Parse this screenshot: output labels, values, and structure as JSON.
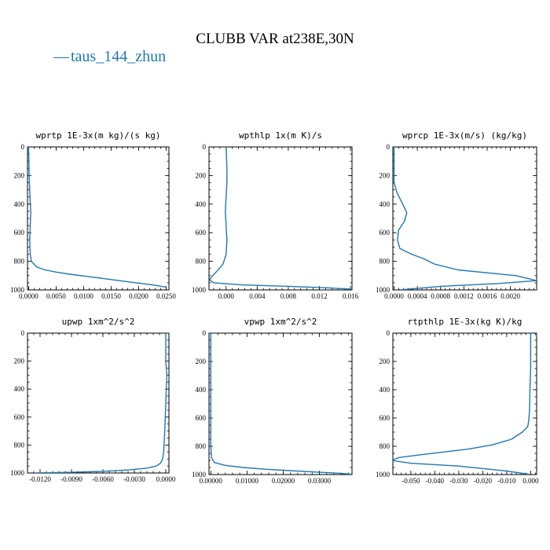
{
  "figure": {
    "title": "CLUBB VAR at238E,30N",
    "legend": {
      "line_glyph": "—",
      "label": "taus_144_zhun",
      "color": "#1f77b4"
    }
  },
  "chart_data": [
    {
      "type": "line",
      "title": "wprtp  1E-3x(m kg)/(s kg)",
      "xlim": [
        -0.0002,
        0.0255
      ],
      "ylim": [
        1000,
        0
      ],
      "xticks": [
        0.0,
        0.005,
        0.01,
        0.015,
        0.02,
        0.025
      ],
      "xtick_labels": [
        "0.0000",
        "0.0050",
        "0.0100",
        "0.0150",
        "0.0200",
        "0.0250"
      ],
      "yticks": [
        0,
        200,
        400,
        600,
        800,
        1000
      ],
      "ytick_labels": [
        "0",
        "200",
        "400",
        "600",
        "800",
        "1000"
      ],
      "series": [
        {
          "color": "#1f77b4",
          "x": [
            0.0,
            0.0001,
            0.0003,
            0.0004,
            0.0003,
            0.0002,
            0.0003,
            0.0005,
            0.0015,
            0.003,
            0.005,
            0.0075,
            0.0105,
            0.0135,
            0.0165,
            0.0195,
            0.0225,
            0.025
          ],
          "y": [
            0,
            200,
            400,
            450,
            550,
            650,
            750,
            800,
            840,
            860,
            875,
            890,
            905,
            920,
            935,
            950,
            965,
            980
          ]
        }
      ]
    },
    {
      "type": "line",
      "title": "wpthlp  1x(m K)/s",
      "xlim": [
        -0.0022,
        0.0162
      ],
      "ylim": [
        1000,
        0
      ],
      "xticks": [
        0.0,
        0.004,
        0.008,
        0.012,
        0.016
      ],
      "xtick_labels": [
        "0.000",
        "0.004",
        "0.008",
        "0.012",
        "0.016"
      ],
      "yticks": [
        0,
        200,
        400,
        600,
        800,
        1000
      ],
      "ytick_labels": [
        "0",
        "200",
        "400",
        "600",
        "800",
        "1000"
      ],
      "series": [
        {
          "color": "#1f77b4",
          "x": [
            0.0,
            0.0001,
            0.0001,
            0.0,
            -0.0001,
            0.0,
            0.0001,
            0.0,
            -0.0004,
            -0.0012,
            -0.0019,
            -0.0021,
            -0.0016,
            0.002,
            0.008,
            0.013,
            0.0162
          ],
          "y": [
            0,
            150,
            250,
            350,
            450,
            550,
            650,
            750,
            820,
            870,
            910,
            930,
            950,
            965,
            975,
            985,
            995
          ]
        }
      ]
    },
    {
      "type": "line",
      "title": "wprcp  1E-3x(m/s) (kg/kg)",
      "xlim": [
        -2e-05,
        0.00245
      ],
      "ylim": [
        1000,
        0
      ],
      "xticks": [
        0.0,
        0.0004,
        0.0008,
        0.0012,
        0.0016,
        0.002
      ],
      "xtick_labels": [
        "0.0000",
        "0.0004",
        "0.0008",
        "0.0012",
        "0.0016",
        "0.0020"
      ],
      "yticks": [
        0,
        200,
        400,
        600,
        800,
        1000
      ],
      "ytick_labels": [
        "0",
        "200",
        "400",
        "600",
        "800",
        "1000"
      ],
      "series": [
        {
          "color": "#1f77b4",
          "x": [
            0.0,
            0.0,
            5e-05,
            0.00015,
            0.00022,
            0.00018,
            8e-05,
            6e-05,
            0.0001,
            0.0003,
            0.0005,
            0.0007,
            0.0011,
            0.0016,
            0.0021,
            0.00245,
            0.0018,
            0.0008,
            0.0001
          ],
          "y": [
            0,
            250,
            320,
            400,
            460,
            520,
            580,
            650,
            710,
            750,
            780,
            820,
            860,
            880,
            900,
            935,
            955,
            975,
            1000
          ]
        }
      ]
    },
    {
      "type": "line",
      "title": "upwp  1xm^2/s^2",
      "xlim": [
        -0.0132,
        0.0003
      ],
      "ylim": [
        1000,
        0
      ],
      "xticks": [
        -0.012,
        -0.009,
        -0.006,
        -0.003,
        0.0
      ],
      "xtick_labels": [
        "-0.0120",
        "-0.0090",
        "-0.0060",
        "-0.0030",
        "0.0000"
      ],
      "yticks": [
        0,
        200,
        400,
        600,
        800,
        1000
      ],
      "ytick_labels": [
        "0",
        "200",
        "400",
        "600",
        "800",
        "1000"
      ],
      "series": [
        {
          "color": "#1f77b4",
          "x": [
            0.0,
            0.0,
            0.0001,
            0.0,
            -0.0001,
            -0.0002,
            -0.0003,
            -0.0005,
            -0.0009,
            -0.0018,
            -0.0035,
            -0.006,
            -0.009,
            -0.0125
          ],
          "y": [
            0,
            200,
            300,
            500,
            700,
            850,
            900,
            930,
            950,
            965,
            978,
            988,
            995,
            1000
          ]
        }
      ]
    },
    {
      "type": "line",
      "title": "vpwp  1xm^2/s^2",
      "xlim": [
        -0.0005,
        0.039
      ],
      "ylim": [
        1000,
        0
      ],
      "xticks": [
        0.0,
        0.01,
        0.02,
        0.03
      ],
      "xtick_labels": [
        "0.00000",
        "0.01000",
        "0.02000",
        "0.03000"
      ],
      "yticks": [
        0,
        200,
        400,
        600,
        800,
        1000
      ],
      "ytick_labels": [
        "0",
        "200",
        "400",
        "600",
        "800",
        "1000"
      ],
      "series": [
        {
          "color": "#1f77b4",
          "x": [
            0.0,
            0.0,
            0.0,
            0.0002,
            0.001,
            0.004,
            0.009,
            0.015,
            0.022,
            0.029,
            0.035,
            0.039
          ],
          "y": [
            0,
            400,
            800,
            880,
            915,
            935,
            950,
            962,
            972,
            982,
            990,
            998
          ]
        }
      ]
    },
    {
      "type": "line",
      "title": "rtpthlp  1E-3x(kg K)/kg",
      "xlim": [
        -0.0575,
        0.0025
      ],
      "ylim": [
        1000,
        0
      ],
      "xticks": [
        -0.05,
        -0.04,
        -0.03,
        -0.02,
        -0.01,
        0.0
      ],
      "xtick_labels": [
        "-0.050",
        "-0.040",
        "-0.030",
        "-0.020",
        "-0.010",
        "0.000"
      ],
      "yticks": [
        0,
        200,
        400,
        600,
        800,
        1000
      ],
      "ytick_labels": [
        "0",
        "200",
        "400",
        "600",
        "800",
        "1000"
      ],
      "series": [
        {
          "color": "#1f77b4",
          "x": [
            0.0,
            0.0,
            -0.0003,
            -0.0005,
            -0.0008,
            -0.0012,
            -0.0035,
            -0.008,
            -0.016,
            -0.026,
            -0.036,
            -0.046,
            -0.055,
            -0.058,
            -0.05,
            -0.03,
            -0.01,
            0.0
          ],
          "y": [
            0,
            250,
            400,
            550,
            620,
            660,
            700,
            750,
            790,
            820,
            840,
            860,
            880,
            900,
            920,
            940,
            975,
            1000
          ]
        }
      ]
    }
  ]
}
